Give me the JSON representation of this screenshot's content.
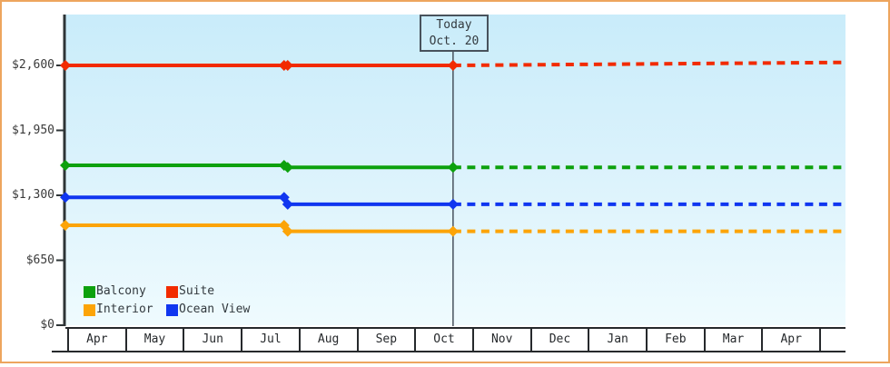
{
  "window": {
    "frame_border_color": "#eda55e",
    "background_color": "#ffffff"
  },
  "chart_data": {
    "type": "line",
    "title": "",
    "x_tick_labels": [
      "Apr",
      "May",
      "Jun",
      "Jul",
      "Aug",
      "Sep",
      "Oct",
      "Nov",
      "Dec",
      "Jan",
      "Feb",
      "Mar",
      "Apr"
    ],
    "y_tick_labels": [
      "$0",
      "$650",
      "$1,300",
      "$1,950",
      "$2,600"
    ],
    "y_tick_values": [
      0,
      650,
      1300,
      1950,
      2600
    ],
    "ylim": [
      0,
      3100
    ],
    "grid": false,
    "legend_position": "bottom-left",
    "plot_background_gradient": [
      "#c9ecfa",
      "#effbfe"
    ],
    "today": {
      "label": "Today",
      "date": "Oct. 20",
      "month_pos": 6.67
    },
    "series": [
      {
        "name": "Suite",
        "color": "#f22b00",
        "initial_value": 2600,
        "change_month_pos": 3.78,
        "value_after_change": 2600,
        "projected_value": 2630
      },
      {
        "name": "Balcony",
        "color": "#0da10d",
        "initial_value": 1600,
        "change_month_pos": 3.78,
        "value_after_change": 1580,
        "projected_value": 1580
      },
      {
        "name": "Ocean View",
        "color": "#1036f0",
        "initial_value": 1280,
        "change_month_pos": 3.78,
        "value_after_change": 1210,
        "projected_value": 1210
      },
      {
        "name": "Interior",
        "color": "#fca408",
        "initial_value": 1000,
        "change_month_pos": 3.78,
        "value_after_change": 940,
        "projected_value": 940
      }
    ]
  },
  "legend": {
    "items": [
      {
        "label": "Balcony",
        "color": "#0da10d"
      },
      {
        "label": "Suite",
        "color": "#f22b00"
      },
      {
        "label": "Interior",
        "color": "#fca408"
      },
      {
        "label": "Ocean View",
        "color": "#1036f0"
      }
    ]
  }
}
